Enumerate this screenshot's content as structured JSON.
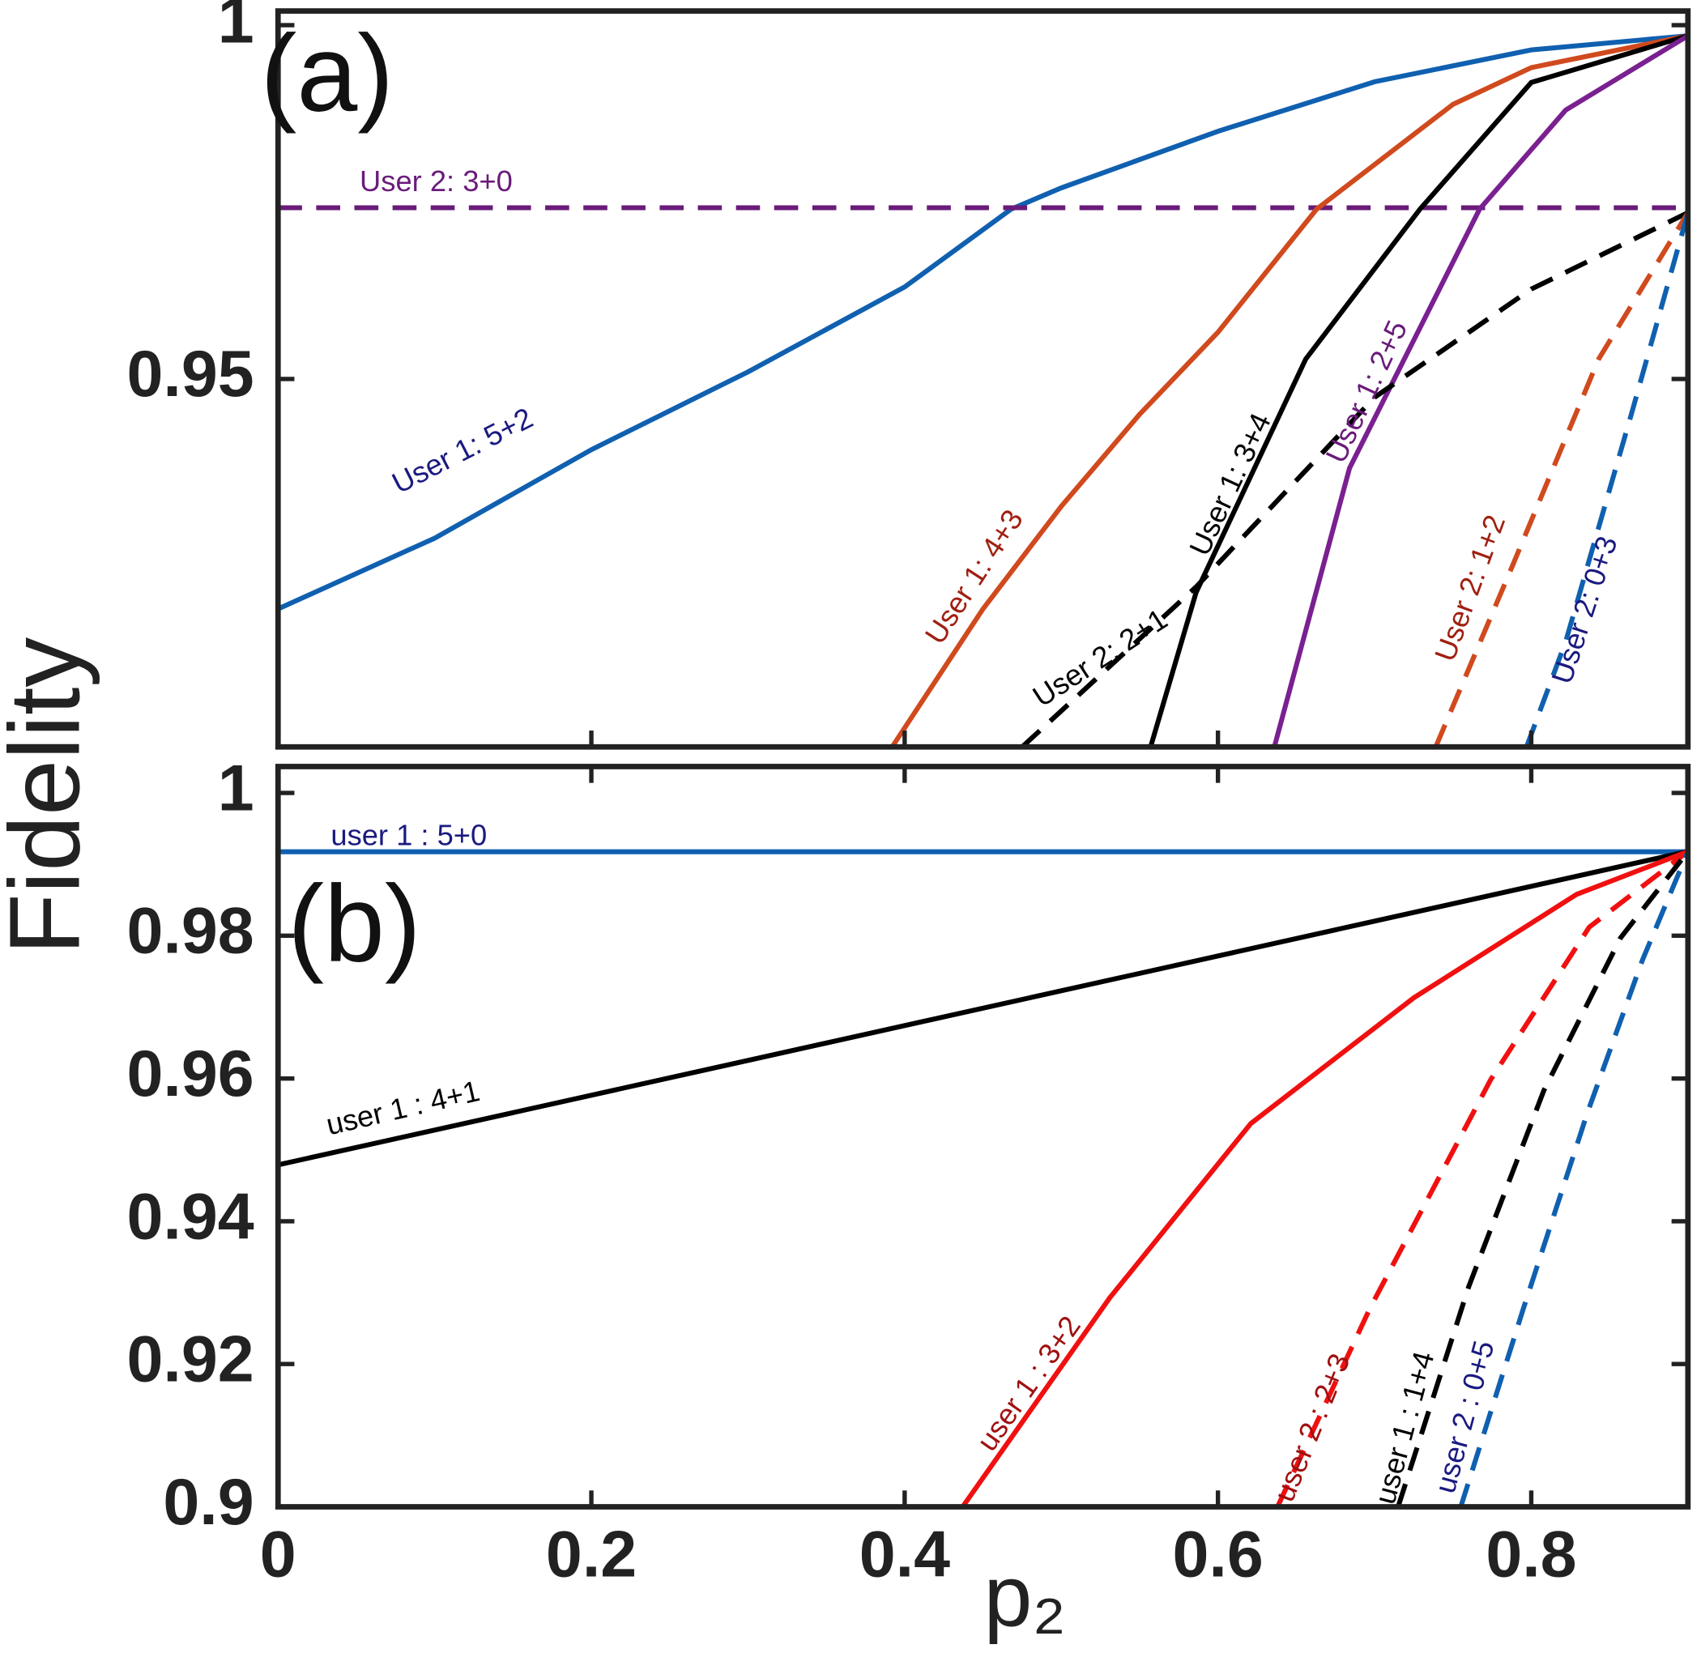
{
  "chart_data": [
    {
      "type": "line",
      "annotation": "(a)",
      "ylabel": "Fidelity",
      "xlim": [
        0,
        0.9
      ],
      "ylim": [
        0.898,
        1.002
      ],
      "yticks": [
        0.95,
        1
      ],
      "series": [
        {
          "name": "User 1: 5+2",
          "color": "#1060b0",
          "label_color": "#1a1a80",
          "dash": false,
          "x": [
            0,
            0.1,
            0.2,
            0.3,
            0.4,
            0.468,
            0.5,
            0.6,
            0.7,
            0.8,
            0.9
          ],
          "values": [
            0.9175,
            0.9275,
            0.94,
            0.951,
            0.963,
            0.974,
            0.977,
            0.985,
            0.992,
            0.9965,
            0.9985
          ]
        },
        {
          "name": "User 2: 3+0",
          "color": "#6a1b7a",
          "label_color": "#6a1b7a",
          "dash": true,
          "x": [
            0,
            0.9
          ],
          "values": [
            0.9742,
            0.9742
          ]
        },
        {
          "name": "User 1: 4+3",
          "color": "#d04a1e",
          "label_color": "#a02010",
          "dash": false,
          "x": [
            0.392,
            0.45,
            0.5,
            0.55,
            0.6,
            0.663,
            0.75,
            0.8,
            0.9
          ],
          "values": [
            0.898,
            0.9175,
            0.932,
            0.945,
            0.9566,
            0.974,
            0.9888,
            0.994,
            0.9985
          ]
        },
        {
          "name": "User 1: 3+4",
          "color": "#000000",
          "label_color": "#000000",
          "dash": false,
          "x": [
            0.557,
            0.586,
            0.656,
            0.729,
            0.8,
            0.9
          ],
          "values": [
            0.898,
            0.9198,
            0.9528,
            0.974,
            0.9919,
            0.9985
          ]
        },
        {
          "name": "User 1: 2+5",
          "color": "#7a2090",
          "label_color": "#6a1b7a",
          "dash": false,
          "x": [
            0.636,
            0.684,
            0.767,
            0.822,
            0.9
          ],
          "values": [
            0.898,
            0.9374,
            0.974,
            0.988,
            0.9985
          ]
        },
        {
          "name": "User 2: 2+1",
          "color": "#000000",
          "label_color": "#000000",
          "dash": true,
          "x": [
            0.475,
            0.586,
            0.7,
            0.8,
            0.9
          ],
          "values": [
            0.898,
            0.9206,
            0.9474,
            0.9627,
            0.9735
          ]
        },
        {
          "name": "User 2: 1+2",
          "color": "#d04a1e",
          "label_color": "#a02010",
          "dash": true,
          "x": [
            0.739,
            0.788,
            0.843,
            0.9
          ],
          "values": [
            0.898,
            0.9236,
            0.9528,
            0.9735
          ]
        },
        {
          "name": "User 2: 0+3",
          "color": "#1060b0",
          "label_color": "#1a1a80",
          "dash": true,
          "x": [
            0.797,
            0.822,
            0.864,
            0.9
          ],
          "values": [
            0.898,
            0.9129,
            0.9451,
            0.9735
          ]
        }
      ]
    },
    {
      "type": "line",
      "annotation": "(b)",
      "xlabel": "p₂",
      "xlim": [
        0,
        0.9
      ],
      "ylim": [
        0.9,
        1.0037
      ],
      "xticks": [
        0,
        0.2,
        0.4,
        0.6,
        0.8
      ],
      "yticks": [
        0.9,
        0.92,
        0.94,
        0.96,
        0.98,
        1
      ],
      "series": [
        {
          "name": "user 1 : 5+0",
          "color": "#1060b0",
          "label_color": "#1a1a80",
          "dash": false,
          "x": [
            0,
            0.9
          ],
          "values": [
            0.99176,
            0.99176
          ]
        },
        {
          "name": "user 1 : 4+1",
          "color": "#000000",
          "label_color": "#000000",
          "dash": false,
          "x": [
            0,
            0.9
          ],
          "values": [
            0.9479,
            0.9918
          ]
        },
        {
          "name": "user 1 : 3+2",
          "color": "#f01010",
          "label_color": "#a01010",
          "dash": false,
          "x": [
            0.437,
            0.531,
            0.621,
            0.725,
            0.829,
            0.9
          ],
          "values": [
            0.9,
            0.9293,
            0.9537,
            0.9713,
            0.9858,
            0.9918
          ]
        },
        {
          "name": "user 2 : 2+3",
          "color": "#f01010",
          "label_color": "#a01010",
          "dash": true,
          "x": [
            0.638,
            0.697,
            0.774,
            0.837,
            0.9
          ],
          "values": [
            0.9,
            0.9278,
            0.9598,
            0.9812,
            0.9918
          ]
        },
        {
          "name": "user 1 : 1+4",
          "color": "#000000",
          "label_color": "#000000",
          "dash": true,
          "x": [
            0.715,
            0.76,
            0.808,
            0.857,
            0.9
          ],
          "values": [
            0.9,
            0.9308,
            0.9583,
            0.9797,
            0.9918
          ]
        },
        {
          "name": "user 2 : 0+5",
          "color": "#1060b0",
          "label_color": "#1a1a80",
          "dash": true,
          "x": [
            0.755,
            0.795,
            0.836,
            0.871,
            0.9
          ],
          "values": [
            0.9,
            0.9278,
            0.9553,
            0.9766,
            0.9918
          ]
        }
      ]
    }
  ]
}
